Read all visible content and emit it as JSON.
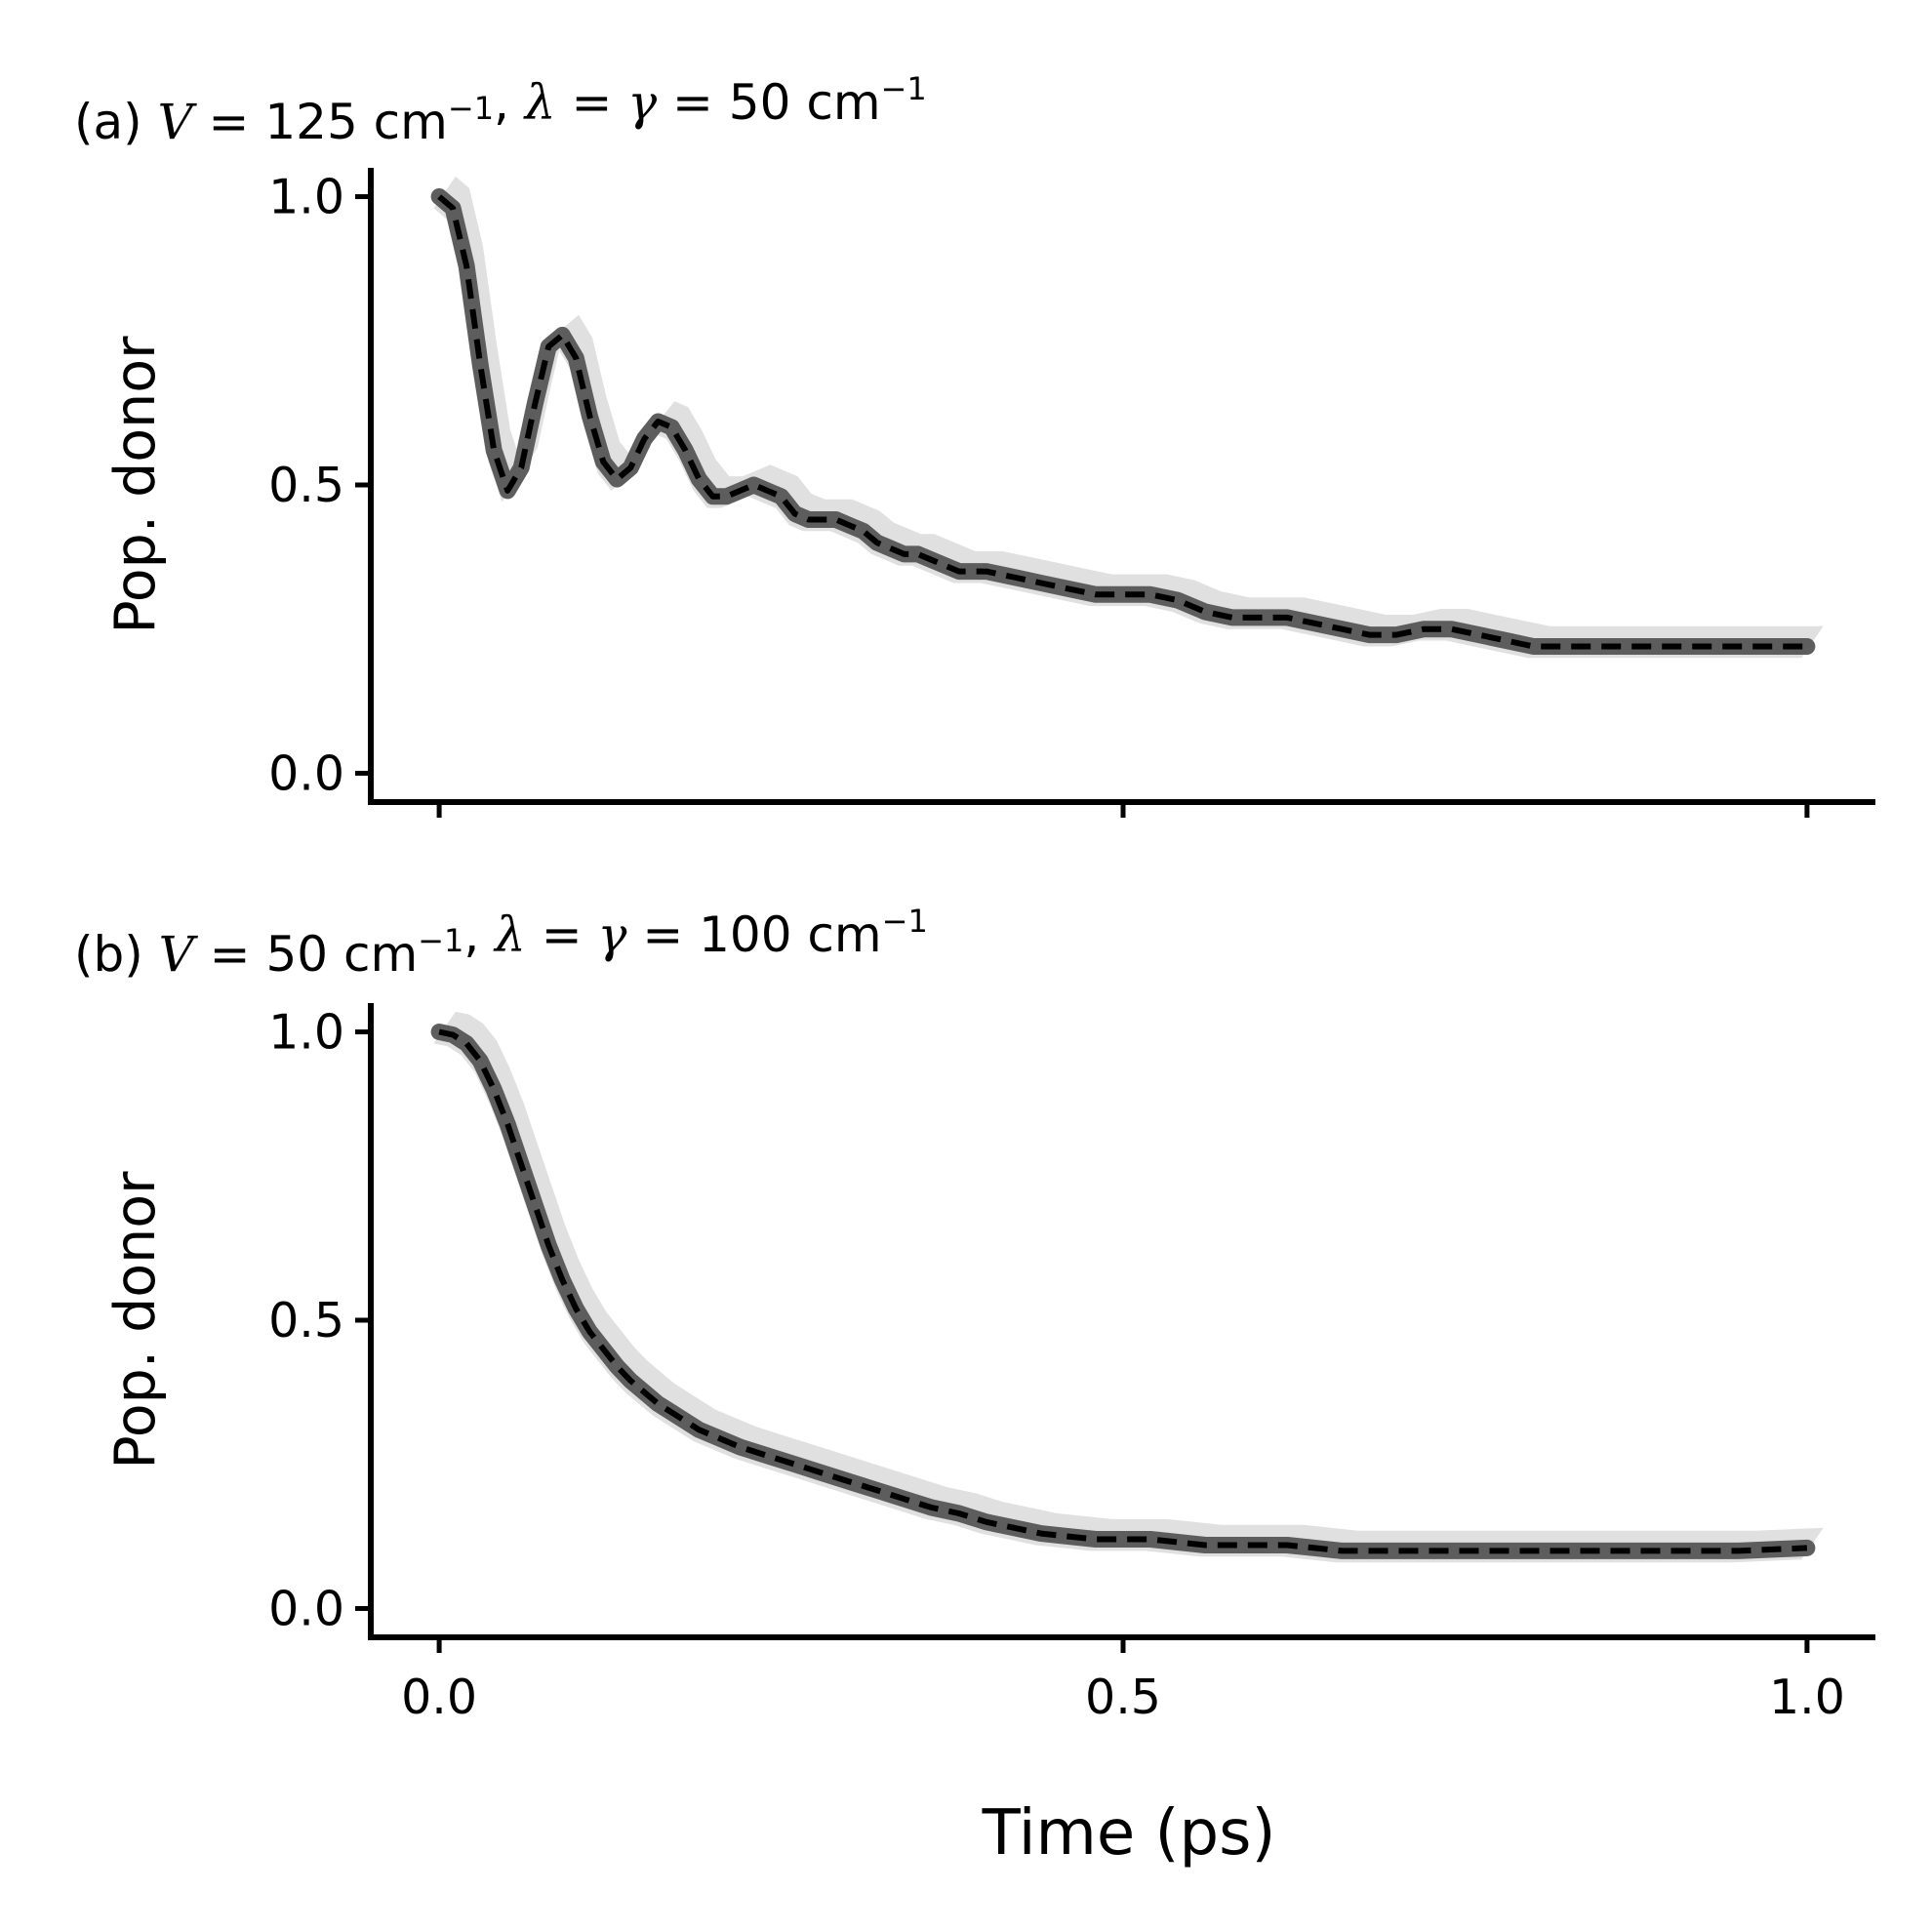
{
  "chart_data": [
    {
      "type": "line",
      "panel": "a",
      "title": {
        "prefix": "(a)",
        "parts": [
          {
            "t": "V",
            "it": true
          },
          {
            "t": " = 125 cm",
            "it": false
          },
          {
            "t": "−1",
            "sup": true
          },
          {
            "t": ",  ",
            "it": false
          },
          {
            "t": "λ",
            "it": true
          },
          {
            "t": " = ",
            "it": false
          },
          {
            "t": "γ",
            "it": true
          },
          {
            "t": " = 50 cm",
            "it": false
          },
          {
            "t": "−1",
            "sup": true
          }
        ]
      },
      "ylabel": "Pop. donor",
      "xlim": [
        -0.05,
        1.05
      ],
      "ylim": [
        -0.05,
        1.05
      ],
      "xticks": [
        0.0,
        0.5,
        1.0
      ],
      "xtick_labels": [
        "",
        "",
        ""
      ],
      "yticks": [
        0.0,
        0.5,
        1.0
      ],
      "ytick_labels": [
        "0.0",
        "0.5",
        "1.0"
      ],
      "band_color": "#e0e0e0",
      "series": [
        {
          "name": "reference (thick grey)",
          "color": "#555555",
          "style": "solid",
          "x": [
            0.0,
            0.01,
            0.02,
            0.03,
            0.04,
            0.05,
            0.06,
            0.07,
            0.08,
            0.09,
            0.1,
            0.11,
            0.12,
            0.13,
            0.14,
            0.15,
            0.16,
            0.17,
            0.18,
            0.19,
            0.2,
            0.21,
            0.22,
            0.23,
            0.24,
            0.25,
            0.26,
            0.27,
            0.28,
            0.29,
            0.3,
            0.31,
            0.32,
            0.33,
            0.34,
            0.35,
            0.36,
            0.37,
            0.38,
            0.39,
            0.4,
            0.42,
            0.44,
            0.46,
            0.48,
            0.5,
            0.52,
            0.54,
            0.56,
            0.58,
            0.6,
            0.62,
            0.64,
            0.66,
            0.68,
            0.7,
            0.72,
            0.74,
            0.76,
            0.78,
            0.8,
            0.82,
            0.84,
            0.86,
            0.88,
            0.9,
            0.92,
            0.94,
            0.96,
            0.98,
            1.0
          ],
          "y": [
            1.0,
            0.98,
            0.88,
            0.71,
            0.56,
            0.49,
            0.53,
            0.64,
            0.74,
            0.76,
            0.72,
            0.62,
            0.54,
            0.51,
            0.53,
            0.58,
            0.61,
            0.6,
            0.56,
            0.51,
            0.48,
            0.48,
            0.49,
            0.5,
            0.49,
            0.48,
            0.45,
            0.44,
            0.44,
            0.44,
            0.43,
            0.42,
            0.4,
            0.39,
            0.38,
            0.38,
            0.37,
            0.36,
            0.35,
            0.35,
            0.35,
            0.34,
            0.33,
            0.32,
            0.31,
            0.31,
            0.31,
            0.3,
            0.28,
            0.27,
            0.27,
            0.27,
            0.26,
            0.25,
            0.24,
            0.24,
            0.25,
            0.25,
            0.24,
            0.23,
            0.22,
            0.22,
            0.22,
            0.22,
            0.22,
            0.22,
            0.22,
            0.22,
            0.22,
            0.22,
            0.22
          ]
        },
        {
          "name": "model (dashed black)",
          "color": "#000000",
          "style": "dashed",
          "x": [
            0.0,
            0.01,
            0.02,
            0.03,
            0.04,
            0.05,
            0.06,
            0.07,
            0.08,
            0.09,
            0.1,
            0.11,
            0.12,
            0.13,
            0.14,
            0.15,
            0.16,
            0.17,
            0.18,
            0.19,
            0.2,
            0.21,
            0.22,
            0.23,
            0.24,
            0.25,
            0.26,
            0.27,
            0.28,
            0.29,
            0.3,
            0.31,
            0.32,
            0.33,
            0.34,
            0.35,
            0.36,
            0.37,
            0.38,
            0.39,
            0.4,
            0.42,
            0.44,
            0.46,
            0.48,
            0.5,
            0.52,
            0.54,
            0.56,
            0.58,
            0.6,
            0.62,
            0.64,
            0.66,
            0.68,
            0.7,
            0.72,
            0.74,
            0.76,
            0.78,
            0.8,
            0.82,
            0.84,
            0.86,
            0.88,
            0.9,
            0.92,
            0.94,
            0.96,
            0.98,
            1.0
          ],
          "y": [
            1.0,
            0.98,
            0.88,
            0.71,
            0.56,
            0.49,
            0.53,
            0.64,
            0.74,
            0.76,
            0.72,
            0.62,
            0.54,
            0.51,
            0.53,
            0.58,
            0.61,
            0.6,
            0.56,
            0.51,
            0.48,
            0.48,
            0.49,
            0.5,
            0.49,
            0.48,
            0.45,
            0.44,
            0.44,
            0.44,
            0.43,
            0.42,
            0.4,
            0.39,
            0.38,
            0.38,
            0.37,
            0.36,
            0.35,
            0.35,
            0.35,
            0.34,
            0.33,
            0.32,
            0.31,
            0.31,
            0.31,
            0.3,
            0.28,
            0.27,
            0.27,
            0.27,
            0.26,
            0.25,
            0.24,
            0.24,
            0.25,
            0.25,
            0.24,
            0.23,
            0.22,
            0.22,
            0.22,
            0.22,
            0.22,
            0.22,
            0.22,
            0.22,
            0.22,
            0.22,
            0.22
          ]
        }
      ]
    },
    {
      "type": "line",
      "panel": "b",
      "title": {
        "prefix": "(b)",
        "parts": [
          {
            "t": "V",
            "it": true
          },
          {
            "t": " = 50 cm",
            "it": false
          },
          {
            "t": "−1",
            "sup": true
          },
          {
            "t": ",  ",
            "it": false
          },
          {
            "t": "λ",
            "it": true
          },
          {
            "t": " = ",
            "it": false
          },
          {
            "t": "γ",
            "it": true
          },
          {
            "t": " = 100 cm",
            "it": false
          },
          {
            "t": "−1",
            "sup": true
          }
        ]
      },
      "ylabel": "Pop. donor",
      "xlabel": "Time (ps)",
      "xlim": [
        -0.05,
        1.05
      ],
      "ylim": [
        -0.05,
        1.05
      ],
      "xticks": [
        0.0,
        0.5,
        1.0
      ],
      "xtick_labels": [
        "0.0",
        "0.5",
        "1.0"
      ],
      "yticks": [
        0.0,
        0.5,
        1.0
      ],
      "ytick_labels": [
        "0.0",
        "0.5",
        "1.0"
      ],
      "band_color": "#e0e0e0",
      "series": [
        {
          "name": "reference (thick grey)",
          "color": "#555555",
          "style": "solid",
          "x": [
            0.0,
            0.01,
            0.02,
            0.03,
            0.04,
            0.05,
            0.06,
            0.07,
            0.08,
            0.09,
            0.1,
            0.11,
            0.12,
            0.13,
            0.14,
            0.15,
            0.16,
            0.17,
            0.18,
            0.19,
            0.2,
            0.22,
            0.24,
            0.26,
            0.28,
            0.3,
            0.32,
            0.34,
            0.36,
            0.38,
            0.4,
            0.42,
            0.44,
            0.46,
            0.48,
            0.5,
            0.52,
            0.54,
            0.56,
            0.58,
            0.6,
            0.62,
            0.64,
            0.66,
            0.68,
            0.7,
            0.75,
            0.8,
            0.85,
            0.9,
            0.95,
            1.0
          ],
          "y": [
            1.0,
            0.995,
            0.98,
            0.95,
            0.9,
            0.84,
            0.77,
            0.7,
            0.63,
            0.57,
            0.52,
            0.48,
            0.45,
            0.42,
            0.395,
            0.375,
            0.355,
            0.34,
            0.325,
            0.31,
            0.3,
            0.28,
            0.265,
            0.25,
            0.235,
            0.22,
            0.205,
            0.19,
            0.175,
            0.165,
            0.15,
            0.14,
            0.13,
            0.125,
            0.12,
            0.12,
            0.12,
            0.115,
            0.11,
            0.11,
            0.11,
            0.11,
            0.105,
            0.1,
            0.1,
            0.1,
            0.1,
            0.1,
            0.1,
            0.1,
            0.1,
            0.105
          ]
        },
        {
          "name": "model (dashed black)",
          "color": "#000000",
          "style": "dashed",
          "x": [
            0.0,
            0.01,
            0.02,
            0.03,
            0.04,
            0.05,
            0.06,
            0.07,
            0.08,
            0.09,
            0.1,
            0.11,
            0.12,
            0.13,
            0.14,
            0.15,
            0.16,
            0.17,
            0.18,
            0.19,
            0.2,
            0.22,
            0.24,
            0.26,
            0.28,
            0.3,
            0.32,
            0.34,
            0.36,
            0.38,
            0.4,
            0.42,
            0.44,
            0.46,
            0.48,
            0.5,
            0.52,
            0.54,
            0.56,
            0.58,
            0.6,
            0.62,
            0.64,
            0.66,
            0.68,
            0.7,
            0.75,
            0.8,
            0.85,
            0.9,
            0.95,
            1.0
          ],
          "y": [
            1.0,
            0.995,
            0.98,
            0.95,
            0.9,
            0.84,
            0.77,
            0.7,
            0.63,
            0.57,
            0.52,
            0.48,
            0.45,
            0.42,
            0.395,
            0.375,
            0.355,
            0.34,
            0.325,
            0.31,
            0.3,
            0.28,
            0.265,
            0.25,
            0.235,
            0.22,
            0.205,
            0.19,
            0.175,
            0.165,
            0.15,
            0.14,
            0.13,
            0.125,
            0.12,
            0.12,
            0.12,
            0.115,
            0.11,
            0.11,
            0.11,
            0.11,
            0.105,
            0.1,
            0.1,
            0.1,
            0.1,
            0.1,
            0.1,
            0.1,
            0.1,
            0.105
          ]
        }
      ]
    }
  ]
}
